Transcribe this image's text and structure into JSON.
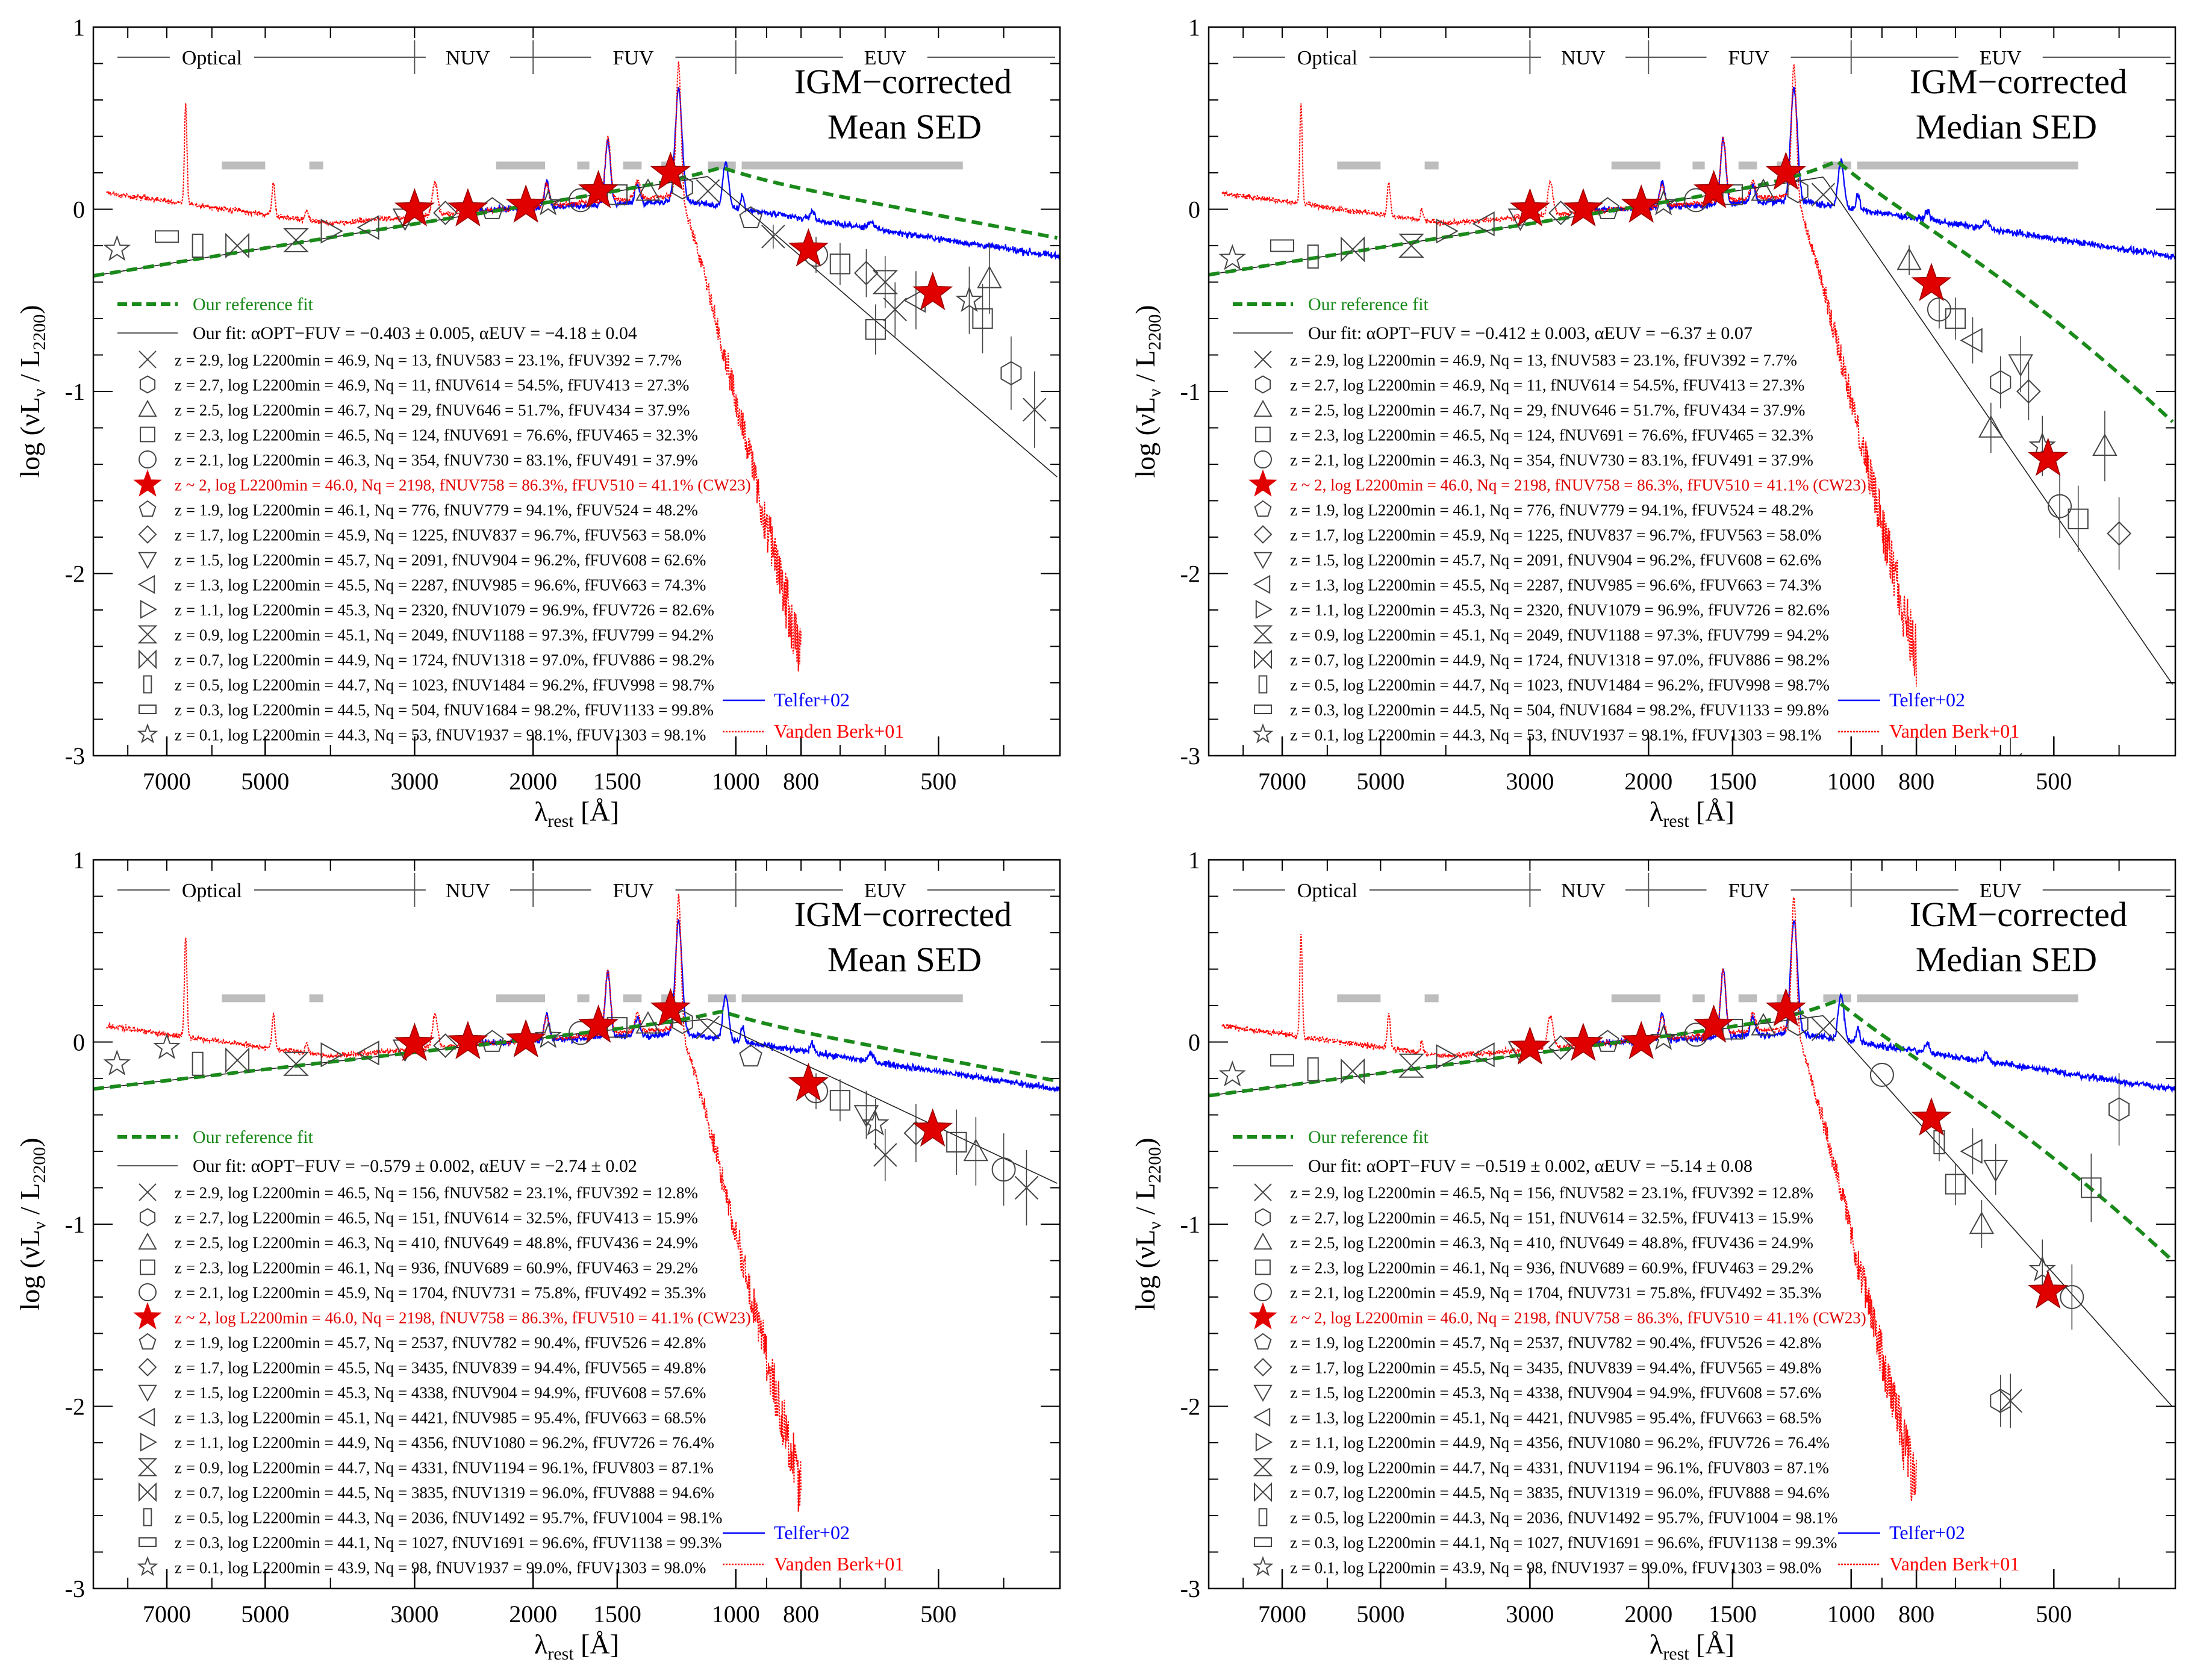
{
  "figure": {
    "axis_labels": {
      "x": "λrest [Å]",
      "y": "log (νLν / L2200)",
      "x_main": "λ",
      "x_sub": "rest",
      "x_unit": " [Å]",
      "y_a": "log (νL",
      "y_b": "ν",
      "y_c": " / L",
      "y_d": "2200",
      "y_e": ")"
    },
    "x_ticks": [
      7000,
      5000,
      3000,
      2000,
      1500,
      1000,
      800,
      500
    ],
    "y_ticks": [
      1,
      0,
      -1,
      -2,
      -3
    ],
    "band_labels": [
      "Optical",
      "NUV",
      "FUV",
      "EUV"
    ],
    "band_boundaries": [
      3000,
      2000,
      1000
    ],
    "spectrum_legend": [
      "Telfer+02",
      "Vanden Berk+01"
    ],
    "reference_fit_label": "Our reference fit",
    "continuum_windows": [
      [
        5800,
        5000
      ],
      [
        4300,
        4100
      ],
      [
        2270,
        1920
      ],
      [
        1720,
        1650
      ],
      [
        1470,
        1380
      ],
      [
        1290,
        1230
      ],
      [
        1100,
        1000
      ],
      [
        980,
        460
      ]
    ],
    "colors": {
      "telfer": "#0000ff",
      "vandenberk": "#ff0000",
      "reference": "#1a8a1a",
      "highlight": "#e00000",
      "window": "#bdbdbd",
      "points": "#444444"
    },
    "symbols_order": [
      "cross",
      "hexagon",
      "triangle-up",
      "square",
      "circle",
      "star-filled",
      "pentagon",
      "diamond",
      "triangle-down",
      "triangle-left",
      "triangle-right",
      "hourglass",
      "bowtie",
      "tall-rect",
      "wide-rect",
      "star-open"
    ]
  },
  "chart_data": [
    {
      "type": "line",
      "title": "IGM−corrected Mean SED",
      "title_lines": [
        "IGM−corrected",
        "Mean SED"
      ],
      "xlabel": "λrest [Å]",
      "ylabel": "log (νLν / L2200)",
      "xlim": [
        9000,
        330
      ],
      "ylim": [
        -3,
        1
      ],
      "xscale": "log-reversed",
      "fit_label": "Our fit: αOPT−FUV = −0.403 ± 0.005, αEUV = −4.18 ± 0.04",
      "fit": {
        "alpha_opt_fuv": -0.403,
        "alpha_euv": -4.18
      },
      "legend_rows": [
        "z = 2.9,  log L2200min = 46.9,  Nq =    13,  fNUV583 = 23.1%,  fFUV392 = 7.7%",
        "z = 2.7,  log L2200min = 46.9,  Nq =    11,  fNUV614 = 54.5%,  fFUV413 = 27.3%",
        "z = 2.5,  log L2200min = 46.7,  Nq =    29,  fNUV646 = 51.7%,  fFUV434 = 37.9%",
        "z = 2.3,  log L2200min = 46.5,  Nq =   124,  fNUV691 = 76.6%,  fFUV465 = 32.3%",
        "z = 2.1,  log L2200min = 46.3,  Nq =   354,  fNUV730 = 83.1%,  fFUV491 = 37.9%",
        "z ~ 2,    log L2200min = 46.0,  Nq = 2198,  fNUV758 = 86.3%,  fFUV510 = 41.1% (CW23)",
        "z = 1.9,  log L2200min = 46.1,  Nq =   776,  fNUV779 = 94.1%,  fFUV524 = 48.2%",
        "z = 1.7,  log L2200min = 45.9,  Nq = 1225,  fNUV837 = 96.7%,  fFUV563 = 58.0%",
        "z = 1.5,  log L2200min = 45.7,  Nq = 2091,  fNUV904 = 96.2%,  fFUV608 = 62.6%",
        "z = 1.3,  log L2200min = 45.5,  Nq = 2287,  fNUV985 = 96.6%,  fFUV663 = 74.3%",
        "z = 1.1,  log L2200min = 45.3,  Nq = 2320,  fNUV1079 = 96.9%,  fFUV726 = 82.6%",
        "z = 0.9,  log L2200min = 45.1,  Nq = 2049,  fNUV1188 = 97.3%,  fFUV799 = 94.2%",
        "z = 0.7,  log L2200min = 44.9,  Nq = 1724,  fNUV1318 = 97.0%,  fFUV886 = 98.2%",
        "z = 0.5,  log L2200min = 44.7,  Nq = 1023,  fNUV1484 = 96.2%,  fFUV998 = 98.7%",
        "z = 0.3,  log L2200min = 44.5,  Nq =   504,  fNUV1684 = 98.2%,  fFUV1133 = 99.8%",
        "z = 0.1,  log L2200min = 44.3,  Nq =    53,  fNUV1937 = 98.1%,  fFUV1303 = 98.1%"
      ],
      "stars": [
        [
          3000,
          0.0
        ],
        [
          2500,
          0.0
        ],
        [
          2050,
          0.02
        ],
        [
          1600,
          0.1
        ],
        [
          1250,
          0.2
        ],
        [
          780,
          -0.22
        ],
        [
          510,
          -0.46
        ]
      ],
      "points": [
        [
          8300,
          -0.22,
          15
        ],
        [
          7000,
          -0.15,
          14
        ],
        [
          6300,
          -0.2,
          13
        ],
        [
          5500,
          -0.2,
          12
        ],
        [
          4500,
          -0.17,
          11
        ],
        [
          4000,
          -0.12,
          10
        ],
        [
          3500,
          -0.1,
          9
        ],
        [
          3100,
          -0.05,
          8
        ],
        [
          2700,
          -0.02,
          7
        ],
        [
          2300,
          0.0,
          6
        ],
        [
          1900,
          0.03,
          5
        ],
        [
          1700,
          0.05,
          4
        ],
        [
          1500,
          0.08,
          3
        ],
        [
          1350,
          0.1,
          2
        ],
        [
          1200,
          0.12,
          1
        ],
        [
          1100,
          0.1,
          0
        ],
        [
          950,
          -0.05,
          6
        ],
        [
          880,
          -0.15,
          0
        ],
        [
          760,
          -0.25,
          4
        ],
        [
          700,
          -0.3,
          3
        ],
        [
          640,
          -0.35,
          7
        ],
        [
          600,
          -0.4,
          11
        ],
        [
          620,
          -0.66,
          3
        ],
        [
          580,
          -0.55,
          0
        ],
        [
          540,
          -0.5,
          9
        ],
        [
          450,
          -0.5,
          5
        ],
        [
          430,
          -0.6,
          3
        ],
        [
          420,
          -0.38,
          2
        ],
        [
          390,
          -0.9,
          1
        ],
        [
          360,
          -1.1,
          0
        ]
      ]
    },
    {
      "type": "line",
      "title": "IGM−corrected Median SED",
      "title_lines": [
        "IGM−corrected",
        "Median SED"
      ],
      "xlabel": "λrest [Å]",
      "ylabel": "log (νLν / L2200)",
      "xlim": [
        9000,
        330
      ],
      "ylim": [
        -3,
        1
      ],
      "xscale": "log-reversed",
      "fit_label": "Our fit: αOPT−FUV = −0.412 ± 0.003, αEUV = −6.37 ± 0.07",
      "fit": {
        "alpha_opt_fuv": -0.412,
        "alpha_euv": -6.37
      },
      "legend_rows": [
        "z = 2.9,  log L2200min = 46.9,  Nq =    13,  fNUV583 = 23.1%,  fFUV392 = 7.7%",
        "z = 2.7,  log L2200min = 46.9,  Nq =    11,  fNUV614 = 54.5%,  fFUV413 = 27.3%",
        "z = 2.5,  log L2200min = 46.7,  Nq =    29,  fNUV646 = 51.7%,  fFUV434 = 37.9%",
        "z = 2.3,  log L2200min = 46.5,  Nq =   124,  fNUV691 = 76.6%,  fFUV465 = 32.3%",
        "z = 2.1,  log L2200min = 46.3,  Nq =   354,  fNUV730 = 83.1%,  fFUV491 = 37.9%",
        "z ~ 2,    log L2200min = 46.0,  Nq = 2198,  fNUV758 = 86.3%,  fFUV510 = 41.1% (CW23)",
        "z = 1.9,  log L2200min = 46.1,  Nq =   776,  fNUV779 = 94.1%,  fFUV524 = 48.2%",
        "z = 1.7,  log L2200min = 45.9,  Nq = 1225,  fNUV837 = 96.7%,  fFUV563 = 58.0%",
        "z = 1.5,  log L2200min = 45.7,  Nq = 2091,  fNUV904 = 96.2%,  fFUV608 = 62.6%",
        "z = 1.3,  log L2200min = 45.5,  Nq = 2287,  fNUV985 = 96.6%,  fFUV663 = 74.3%",
        "z = 1.1,  log L2200min = 45.3,  Nq = 2320,  fNUV1079 = 96.9%,  fFUV726 = 82.6%",
        "z = 0.9,  log L2200min = 45.1,  Nq = 2049,  fNUV1188 = 97.3%,  fFUV799 = 94.2%",
        "z = 0.7,  log L2200min = 44.9,  Nq = 1724,  fNUV1318 = 97.0%,  fFUV886 = 98.2%",
        "z = 0.5,  log L2200min = 44.7,  Nq = 1023,  fNUV1484 = 96.2%,  fFUV998 = 98.7%",
        "z = 0.3,  log L2200min = 44.5,  Nq =   504,  fNUV1684 = 98.2%,  fFUV1133 = 99.8%",
        "z = 0.1,  log L2200min = 44.3,  Nq =    53,  fNUV1937 = 98.1%,  fFUV1303 = 98.1%"
      ],
      "stars": [
        [
          3000,
          0.0
        ],
        [
          2500,
          0.0
        ],
        [
          2050,
          0.02
        ],
        [
          1600,
          0.1
        ],
        [
          1250,
          0.2
        ],
        [
          760,
          -0.41
        ],
        [
          510,
          -1.37
        ]
      ],
      "points": [
        [
          8300,
          -0.27,
          15
        ],
        [
          7000,
          -0.2,
          14
        ],
        [
          6300,
          -0.26,
          13
        ],
        [
          5500,
          -0.22,
          12
        ],
        [
          4500,
          -0.2,
          11
        ],
        [
          4000,
          -0.12,
          10
        ],
        [
          3500,
          -0.08,
          9
        ],
        [
          3100,
          -0.05,
          8
        ],
        [
          2700,
          -0.02,
          7
        ],
        [
          2300,
          0.0,
          6
        ],
        [
          1900,
          0.03,
          5
        ],
        [
          1700,
          0.05,
          4
        ],
        [
          1500,
          0.08,
          3
        ],
        [
          1350,
          0.1,
          2
        ],
        [
          1200,
          0.1,
          1
        ],
        [
          1100,
          0.08,
          0
        ],
        [
          820,
          -0.28,
          2
        ],
        [
          740,
          -0.55,
          4
        ],
        [
          700,
          -0.6,
          3
        ],
        [
          660,
          -0.72,
          9
        ],
        [
          620,
          -1.2,
          2
        ],
        [
          600,
          -0.95,
          1
        ],
        [
          560,
          -0.85,
          8
        ],
        [
          545,
          -1.0,
          7
        ],
        [
          520,
          -1.3,
          5
        ],
        [
          490,
          -1.63,
          4
        ],
        [
          460,
          -1.7,
          3
        ],
        [
          420,
          -1.3,
          2
        ],
        [
          400,
          -1.78,
          7
        ],
        [
          580,
          -3.05,
          0
        ]
      ]
    },
    {
      "type": "line",
      "title": "IGM−corrected Mean SED",
      "title_lines": [
        "IGM−corrected",
        "Mean SED"
      ],
      "xlabel": "λrest [Å]",
      "ylabel": "log (νLν / L2200)",
      "xlim": [
        9000,
        330
      ],
      "ylim": [
        -3,
        1
      ],
      "xscale": "log-reversed",
      "fit_label": "Our fit: αOPT−FUV = −0.579 ± 0.002, αEUV = −2.74 ± 0.02",
      "fit": {
        "alpha_opt_fuv": -0.579,
        "alpha_euv": -2.74
      },
      "legend_rows": [
        "z = 2.9,  log L2200min = 46.5,  Nq =   156,  fNUV582 = 23.1%,  fFUV392 = 12.8%",
        "z = 2.7,  log L2200min = 46.5,  Nq =   151,  fNUV614 = 32.5%,  fFUV413 = 15.9%",
        "z = 2.5,  log L2200min = 46.3,  Nq =   410,  fNUV649 = 48.8%,  fFUV436 = 24.9%",
        "z = 2.3,  log L2200min = 46.1,  Nq =   936,  fNUV689 = 60.9%,  fFUV463 = 29.2%",
        "z = 2.1,  log L2200min = 45.9,  Nq = 1704,  fNUV731 = 75.8%,  fFUV492 = 35.3%",
        "z ~ 2,    log L2200min = 46.0,  Nq = 2198,  fNUV758 = 86.3%,  fFUV510 = 41.1% (CW23)",
        "z = 1.9,  log L2200min = 45.7,  Nq = 2537,  fNUV782 = 90.4%,  fFUV526 = 42.8%",
        "z = 1.7,  log L2200min = 45.5,  Nq = 3435,  fNUV839 = 94.4%,  fFUV565 = 49.8%",
        "z = 1.5,  log L2200min = 45.3,  Nq = 4338,  fNUV904 = 94.9%,  fFUV608 = 57.6%",
        "z = 1.3,  log L2200min = 45.1,  Nq = 4421,  fNUV985 = 95.4%,  fFUV663 = 68.5%",
        "z = 1.1,  log L2200min = 44.9,  Nq = 4356,  fNUV1080 = 96.2%,  fFUV726 = 76.4%",
        "z = 0.9,  log L2200min = 44.7,  Nq = 4331,  fNUV1194 = 96.1%,  fFUV803 = 87.1%",
        "z = 0.7,  log L2200min = 44.5,  Nq = 3835,  fNUV1319 = 96.0%,  fFUV888 = 94.6%",
        "z = 0.5,  log L2200min = 44.3,  Nq = 2036,  fNUV1492 = 95.7%,  fFUV1004 = 98.1%",
        "z = 0.3,  log L2200min = 44.1,  Nq = 1027,  fNUV1691 = 96.6%,  fFUV1138 = 99.3%",
        "z = 0.1,  log L2200min = 43.9,  Nq =    98,  fNUV1937 = 99.0%,  fFUV1303 = 98.0%"
      ],
      "stars": [
        [
          3000,
          -0.01
        ],
        [
          2500,
          0.0
        ],
        [
          2050,
          0.01
        ],
        [
          1600,
          0.09
        ],
        [
          1250,
          0.18
        ],
        [
          780,
          -0.23
        ],
        [
          510,
          -0.48
        ]
      ],
      "points": [
        [
          8300,
          -0.12,
          15
        ],
        [
          7000,
          -0.03,
          15
        ],
        [
          6300,
          -0.12,
          13
        ],
        [
          5500,
          -0.1,
          12
        ],
        [
          4500,
          -0.12,
          11
        ],
        [
          4000,
          -0.07,
          10
        ],
        [
          3500,
          -0.06,
          9
        ],
        [
          3100,
          -0.04,
          8
        ],
        [
          2700,
          -0.02,
          7
        ],
        [
          2300,
          0.0,
          6
        ],
        [
          1900,
          0.03,
          5
        ],
        [
          1700,
          0.05,
          4
        ],
        [
          1500,
          0.08,
          3
        ],
        [
          1350,
          0.1,
          2
        ],
        [
          1200,
          0.11,
          1
        ],
        [
          1100,
          0.08,
          0
        ],
        [
          950,
          -0.08,
          6
        ],
        [
          760,
          -0.27,
          4
        ],
        [
          700,
          -0.32,
          3
        ],
        [
          640,
          -0.4,
          8
        ],
        [
          620,
          -0.45,
          5
        ],
        [
          600,
          -0.62,
          0
        ],
        [
          540,
          -0.5,
          7
        ],
        [
          470,
          -0.55,
          3
        ],
        [
          440,
          -0.6,
          2
        ],
        [
          400,
          -0.7,
          4
        ],
        [
          370,
          -0.8,
          0
        ]
      ]
    },
    {
      "type": "line",
      "title": "IGM−corrected Median SED",
      "title_lines": [
        "IGM−corrected",
        "Median SED"
      ],
      "xlabel": "λrest [Å]",
      "ylabel": "log (νLν / L2200)",
      "xlim": [
        9000,
        330
      ],
      "ylim": [
        -3,
        1
      ],
      "xscale": "log-reversed",
      "fit_label": "Our fit: αOPT−FUV = −0.519 ± 0.002, αEUV = −5.14 ± 0.08",
      "fit": {
        "alpha_opt_fuv": -0.519,
        "alpha_euv": -5.14
      },
      "legend_rows": [
        "z = 2.9,  log L2200min = 46.5,  Nq =   156,  fNUV582 = 23.1%,  fFUV392 = 12.8%",
        "z = 2.7,  log L2200min = 46.5,  Nq =   151,  fNUV614 = 32.5%,  fFUV413 = 15.9%",
        "z = 2.5,  log L2200min = 46.3,  Nq =   410,  fNUV649 = 48.8%,  fFUV436 = 24.9%",
        "z = 2.3,  log L2200min = 46.1,  Nq =   936,  fNUV689 = 60.9%,  fFUV463 = 29.2%",
        "z = 2.1,  log L2200min = 45.9,  Nq = 1704,  fNUV731 = 75.8%,  fFUV492 = 35.3%",
        "z ~ 2,    log L2200min = 46.0,  Nq = 2198,  fNUV758 = 86.3%,  fFUV510 = 41.1% (CW23)",
        "z = 1.9,  log L2200min = 45.7,  Nq = 2537,  fNUV782 = 90.4%,  fFUV526 = 42.8%",
        "z = 1.7,  log L2200min = 45.5,  Nq = 3435,  fNUV839 = 94.4%,  fFUV565 = 49.8%",
        "z = 1.5,  log L2200min = 45.3,  Nq = 4338,  fNUV904 = 94.9%,  fFUV608 = 57.6%",
        "z = 1.3,  log L2200min = 45.1,  Nq = 4421,  fNUV985 = 95.4%,  fFUV663 = 68.5%",
        "z = 1.1,  log L2200min = 44.9,  Nq = 4356,  fNUV1080 = 96.2%,  fFUV726 = 76.4%",
        "z = 0.9,  log L2200min = 44.7,  Nq = 4331,  fNUV1194 = 96.1%,  fFUV803 = 87.1%",
        "z = 0.7,  log L2200min = 44.5,  Nq = 3835,  fNUV1319 = 96.0%,  fFUV888 = 94.6%",
        "z = 0.5,  log L2200min = 44.3,  Nq = 2036,  fNUV1492 = 95.7%,  fFUV1004 = 98.1%",
        "z = 0.3,  log L2200min = 44.1,  Nq = 1027,  fNUV1691 = 96.6%,  fFUV1138 = 99.3%",
        "z = 0.1,  log L2200min = 43.9,  Nq =    98,  fNUV1937 = 99.0%,  fFUV1303 = 98.0%"
      ],
      "stars": [
        [
          3000,
          -0.03
        ],
        [
          2500,
          -0.01
        ],
        [
          2050,
          0.0
        ],
        [
          1600,
          0.09
        ],
        [
          1250,
          0.18
        ],
        [
          760,
          -0.42
        ],
        [
          510,
          -1.37
        ]
      ],
      "points": [
        [
          8300,
          -0.18,
          15
        ],
        [
          7000,
          -0.1,
          14
        ],
        [
          6300,
          -0.15,
          13
        ],
        [
          5500,
          -0.16,
          12
        ],
        [
          4500,
          -0.13,
          11
        ],
        [
          4000,
          -0.08,
          10
        ],
        [
          3500,
          -0.07,
          9
        ],
        [
          3100,
          -0.05,
          8
        ],
        [
          2700,
          -0.03,
          7
        ],
        [
          2300,
          0.0,
          6
        ],
        [
          1900,
          0.02,
          5
        ],
        [
          1700,
          0.04,
          4
        ],
        [
          1500,
          0.07,
          3
        ],
        [
          1350,
          0.09,
          2
        ],
        [
          1200,
          0.1,
          1
        ],
        [
          1100,
          0.07,
          0
        ],
        [
          900,
          -0.18,
          4
        ],
        [
          740,
          -0.55,
          13
        ],
        [
          700,
          -0.78,
          3
        ],
        [
          660,
          -0.6,
          9
        ],
        [
          640,
          -1.0,
          2
        ],
        [
          610,
          -0.7,
          8
        ],
        [
          600,
          -1.97,
          1
        ],
        [
          580,
          -1.97,
          0
        ],
        [
          520,
          -1.25,
          5
        ],
        [
          470,
          -1.4,
          4
        ],
        [
          440,
          -0.8,
          3
        ],
        [
          400,
          -0.37,
          1
        ]
      ]
    }
  ]
}
